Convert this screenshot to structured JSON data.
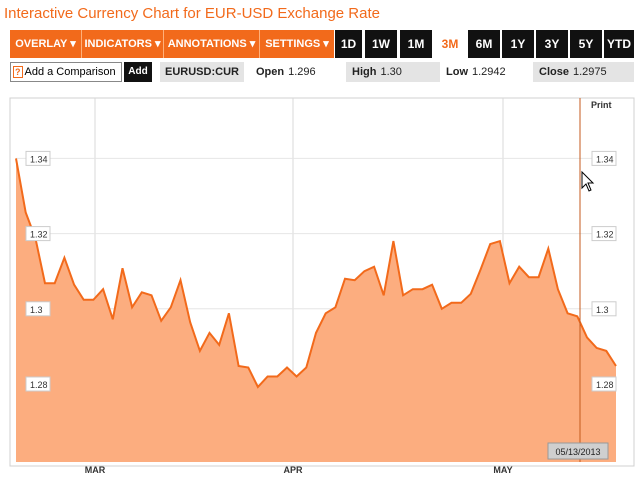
{
  "title": "Interactive Currency Chart for EUR-USD Exchange Rate",
  "toolbar": {
    "menus": [
      "OVERLAY ▾",
      "INDICATORS ▾",
      "ANNOTATIONS ▾",
      "SETTINGS ▾"
    ],
    "ranges": [
      "1D",
      "1W",
      "1M",
      "3M",
      "6M",
      "1Y",
      "3Y",
      "5Y",
      "YTD"
    ],
    "active_range": "3M"
  },
  "info": {
    "help_glyph": "?",
    "compare_placeholder": "Add a Comparison",
    "add_label": "Add",
    "symbol": "EURUSD:CUR",
    "open_label": "Open",
    "open_value": "1.296",
    "high_label": "High",
    "high_value": "1.30",
    "low_label": "Low",
    "low_value": "1.2942",
    "close_label": "Close",
    "close_value": "1.2975"
  },
  "print_label": "Print",
  "colors": {
    "accent": "#f26a1b",
    "area_fill": "#fcad7f",
    "dark": "#111111"
  },
  "chart_data": {
    "type": "area",
    "x_ticks": [
      "MAR",
      "APR",
      "MAY"
    ],
    "y_ticks": [
      "1.34",
      "1.32",
      "1.3",
      "1.28"
    ],
    "ylim": [
      1.2605,
      1.3596
    ],
    "grid": true,
    "crosshair_date": "05/13/2013",
    "values": [
      1.34,
      1.3256,
      1.3188,
      1.3068,
      1.3068,
      1.3136,
      1.3064,
      1.3024,
      1.3024,
      1.3052,
      1.2972,
      1.3108,
      1.3004,
      1.3044,
      1.3036,
      1.2968,
      1.3004,
      1.3076,
      1.2964,
      1.2888,
      1.2936,
      1.2904,
      1.2988,
      1.2848,
      1.2844,
      1.2792,
      1.282,
      1.282,
      1.2844,
      1.282,
      1.2844,
      1.2936,
      1.2988,
      1.3004,
      1.308,
      1.3076,
      1.31,
      1.3112,
      1.3036,
      1.318,
      1.3036,
      1.3052,
      1.3052,
      1.3064,
      1.3,
      1.3016,
      1.3016,
      1.304,
      1.3104,
      1.3172,
      1.318,
      1.3068,
      1.3112,
      1.3084,
      1.3084,
      1.316,
      1.3052,
      1.2988,
      1.298,
      1.2924,
      1.2896,
      1.2888,
      1.2848
    ]
  }
}
